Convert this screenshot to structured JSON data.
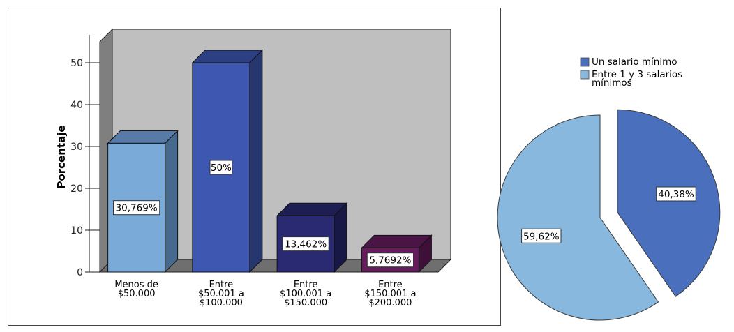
{
  "chart_data": [
    {
      "type": "bar",
      "ylabel": "Porcentaje",
      "categories": [
        [
          "Menos de",
          "$50.000"
        ],
        [
          "Entre",
          "$50.001 a",
          "$100.000"
        ],
        [
          "Entre",
          "$100.001 a",
          "$150.000"
        ],
        [
          "Entre",
          "$150.001 a",
          "$200.000"
        ]
      ],
      "values": [
        30.769,
        50,
        13.462,
        5.7692
      ],
      "data_labels": [
        "30,769%",
        "50%",
        "13,462%",
        "5,7692%"
      ],
      "yticks": [
        "0",
        "10",
        "20",
        "30",
        "40",
        "50"
      ],
      "ylim": [
        0,
        55
      ],
      "three_d": true,
      "colors": {
        "bars": [
          "#7aaad8",
          "#3e57b0",
          "#2a2a72",
          "#651c5c"
        ],
        "tops": [
          "#577ba6",
          "#2c3f82",
          "#1e1e52",
          "#4a1444"
        ],
        "sides": [
          "#466a8e",
          "#26366e",
          "#181846",
          "#3e1039"
        ],
        "back_wall": "#bfbfbf",
        "left_wall": "#7f7f7f",
        "floor": "#6f6f6f"
      }
    },
    {
      "type": "pie",
      "slices": [
        {
          "label": "Un salario mínimo",
          "value": 40.38,
          "data_label": "40,38%",
          "color": "#4a6fbd",
          "exploded": true
        },
        {
          "label": "Entre 1 y 3 salarios mínimos",
          "legend_lines": [
            "Entre 1 y 3 salarios",
            "mínimos"
          ],
          "value": 59.62,
          "data_label": "59,62%",
          "color": "#88b8de",
          "exploded": false
        }
      ],
      "legend_position": "top"
    }
  ]
}
